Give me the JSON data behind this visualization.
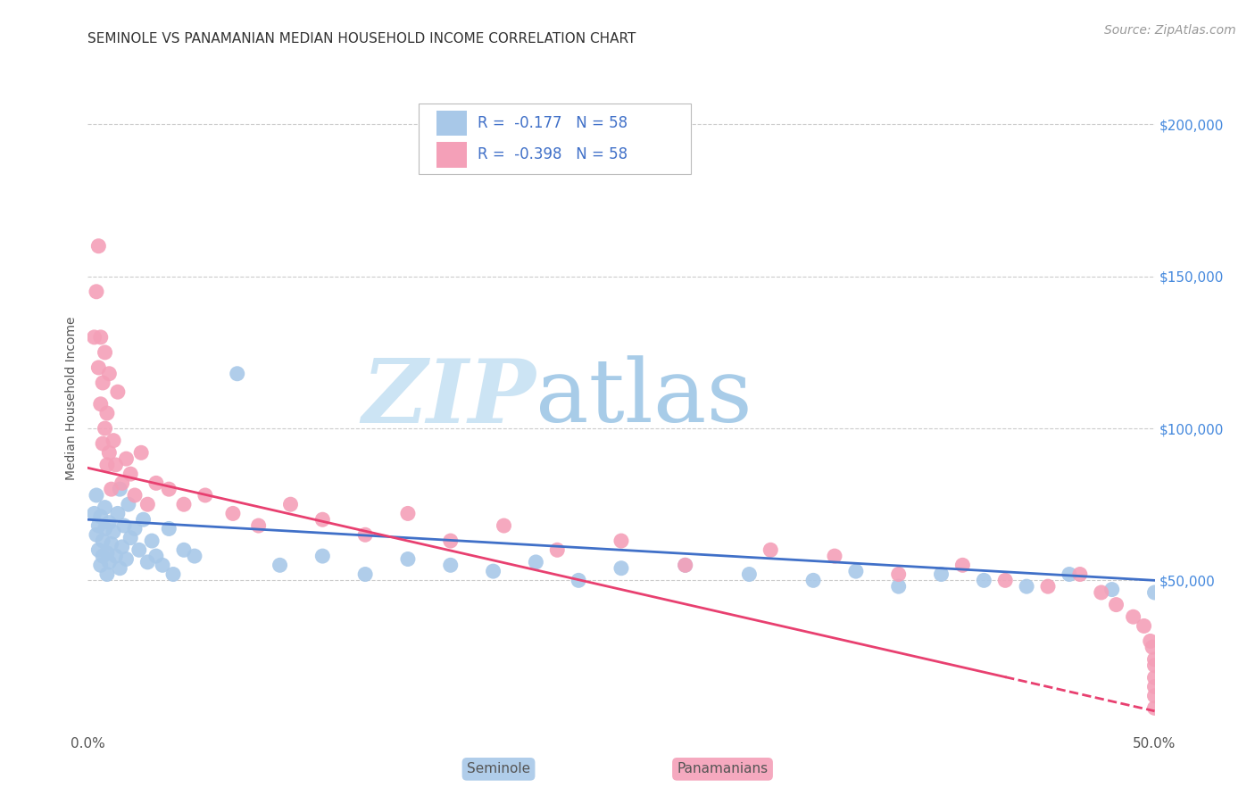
{
  "title": "SEMINOLE VS PANAMANIAN MEDIAN HOUSEHOLD INCOME CORRELATION CHART",
  "source": "Source: ZipAtlas.com",
  "ylabel": "Median Household Income",
  "xlim": [
    0.0,
    0.5
  ],
  "ylim": [
    0,
    220000
  ],
  "xticks": [
    0.0,
    0.5
  ],
  "xticklabels": [
    "0.0%",
    "50.0%"
  ],
  "yticks_right": [
    50000,
    100000,
    150000,
    200000
  ],
  "yticklabels_right": [
    "$50,000",
    "$100,000",
    "$150,000",
    "$200,000"
  ],
  "legend_r1": "R =  -0.177   N = 58",
  "legend_r2": "R =  -0.398   N = 58",
  "seminole_color": "#a8c8e8",
  "panamanian_color": "#f4a0b8",
  "seminole_line_color": "#4070c8",
  "panamanian_line_color": "#e84070",
  "watermark_zip_color": "#cce0f0",
  "watermark_atlas_color": "#a0c4e0",
  "background_color": "#ffffff",
  "grid_color": "#cccccc",
  "seminole_x": [
    0.003,
    0.004,
    0.004,
    0.005,
    0.005,
    0.006,
    0.006,
    0.007,
    0.007,
    0.008,
    0.008,
    0.009,
    0.009,
    0.01,
    0.01,
    0.011,
    0.012,
    0.013,
    0.014,
    0.015,
    0.015,
    0.016,
    0.017,
    0.018,
    0.019,
    0.02,
    0.022,
    0.024,
    0.026,
    0.028,
    0.03,
    0.032,
    0.035,
    0.038,
    0.04,
    0.045,
    0.05,
    0.07,
    0.09,
    0.11,
    0.13,
    0.15,
    0.17,
    0.19,
    0.21,
    0.23,
    0.25,
    0.28,
    0.31,
    0.34,
    0.36,
    0.38,
    0.4,
    0.42,
    0.44,
    0.46,
    0.48,
    0.5
  ],
  "seminole_y": [
    72000,
    65000,
    78000,
    60000,
    68000,
    55000,
    71000,
    58000,
    63000,
    67000,
    74000,
    59000,
    52000,
    69000,
    56000,
    62000,
    66000,
    58000,
    72000,
    54000,
    80000,
    61000,
    68000,
    57000,
    75000,
    64000,
    67000,
    60000,
    70000,
    56000,
    63000,
    58000,
    55000,
    67000,
    52000,
    60000,
    58000,
    118000,
    55000,
    58000,
    52000,
    57000,
    55000,
    53000,
    56000,
    50000,
    54000,
    55000,
    52000,
    50000,
    53000,
    48000,
    52000,
    50000,
    48000,
    52000,
    47000,
    46000
  ],
  "panamanian_x": [
    0.003,
    0.004,
    0.005,
    0.005,
    0.006,
    0.006,
    0.007,
    0.007,
    0.008,
    0.008,
    0.009,
    0.009,
    0.01,
    0.01,
    0.011,
    0.012,
    0.013,
    0.014,
    0.016,
    0.018,
    0.02,
    0.022,
    0.025,
    0.028,
    0.032,
    0.038,
    0.045,
    0.055,
    0.068,
    0.08,
    0.095,
    0.11,
    0.13,
    0.15,
    0.17,
    0.195,
    0.22,
    0.25,
    0.28,
    0.32,
    0.35,
    0.38,
    0.41,
    0.43,
    0.45,
    0.465,
    0.475,
    0.482,
    0.49,
    0.495,
    0.498,
    0.499,
    0.5,
    0.5,
    0.5,
    0.5,
    0.5,
    0.5
  ],
  "panamanian_y": [
    130000,
    145000,
    120000,
    160000,
    108000,
    130000,
    95000,
    115000,
    100000,
    125000,
    88000,
    105000,
    92000,
    118000,
    80000,
    96000,
    88000,
    112000,
    82000,
    90000,
    85000,
    78000,
    92000,
    75000,
    82000,
    80000,
    75000,
    78000,
    72000,
    68000,
    75000,
    70000,
    65000,
    72000,
    63000,
    68000,
    60000,
    63000,
    55000,
    60000,
    58000,
    52000,
    55000,
    50000,
    48000,
    52000,
    46000,
    42000,
    38000,
    35000,
    30000,
    28000,
    24000,
    22000,
    18000,
    15000,
    12000,
    8000
  ],
  "title_fontsize": 11,
  "axis_label_fontsize": 10,
  "tick_fontsize": 11,
  "legend_fontsize": 12,
  "source_fontsize": 10
}
